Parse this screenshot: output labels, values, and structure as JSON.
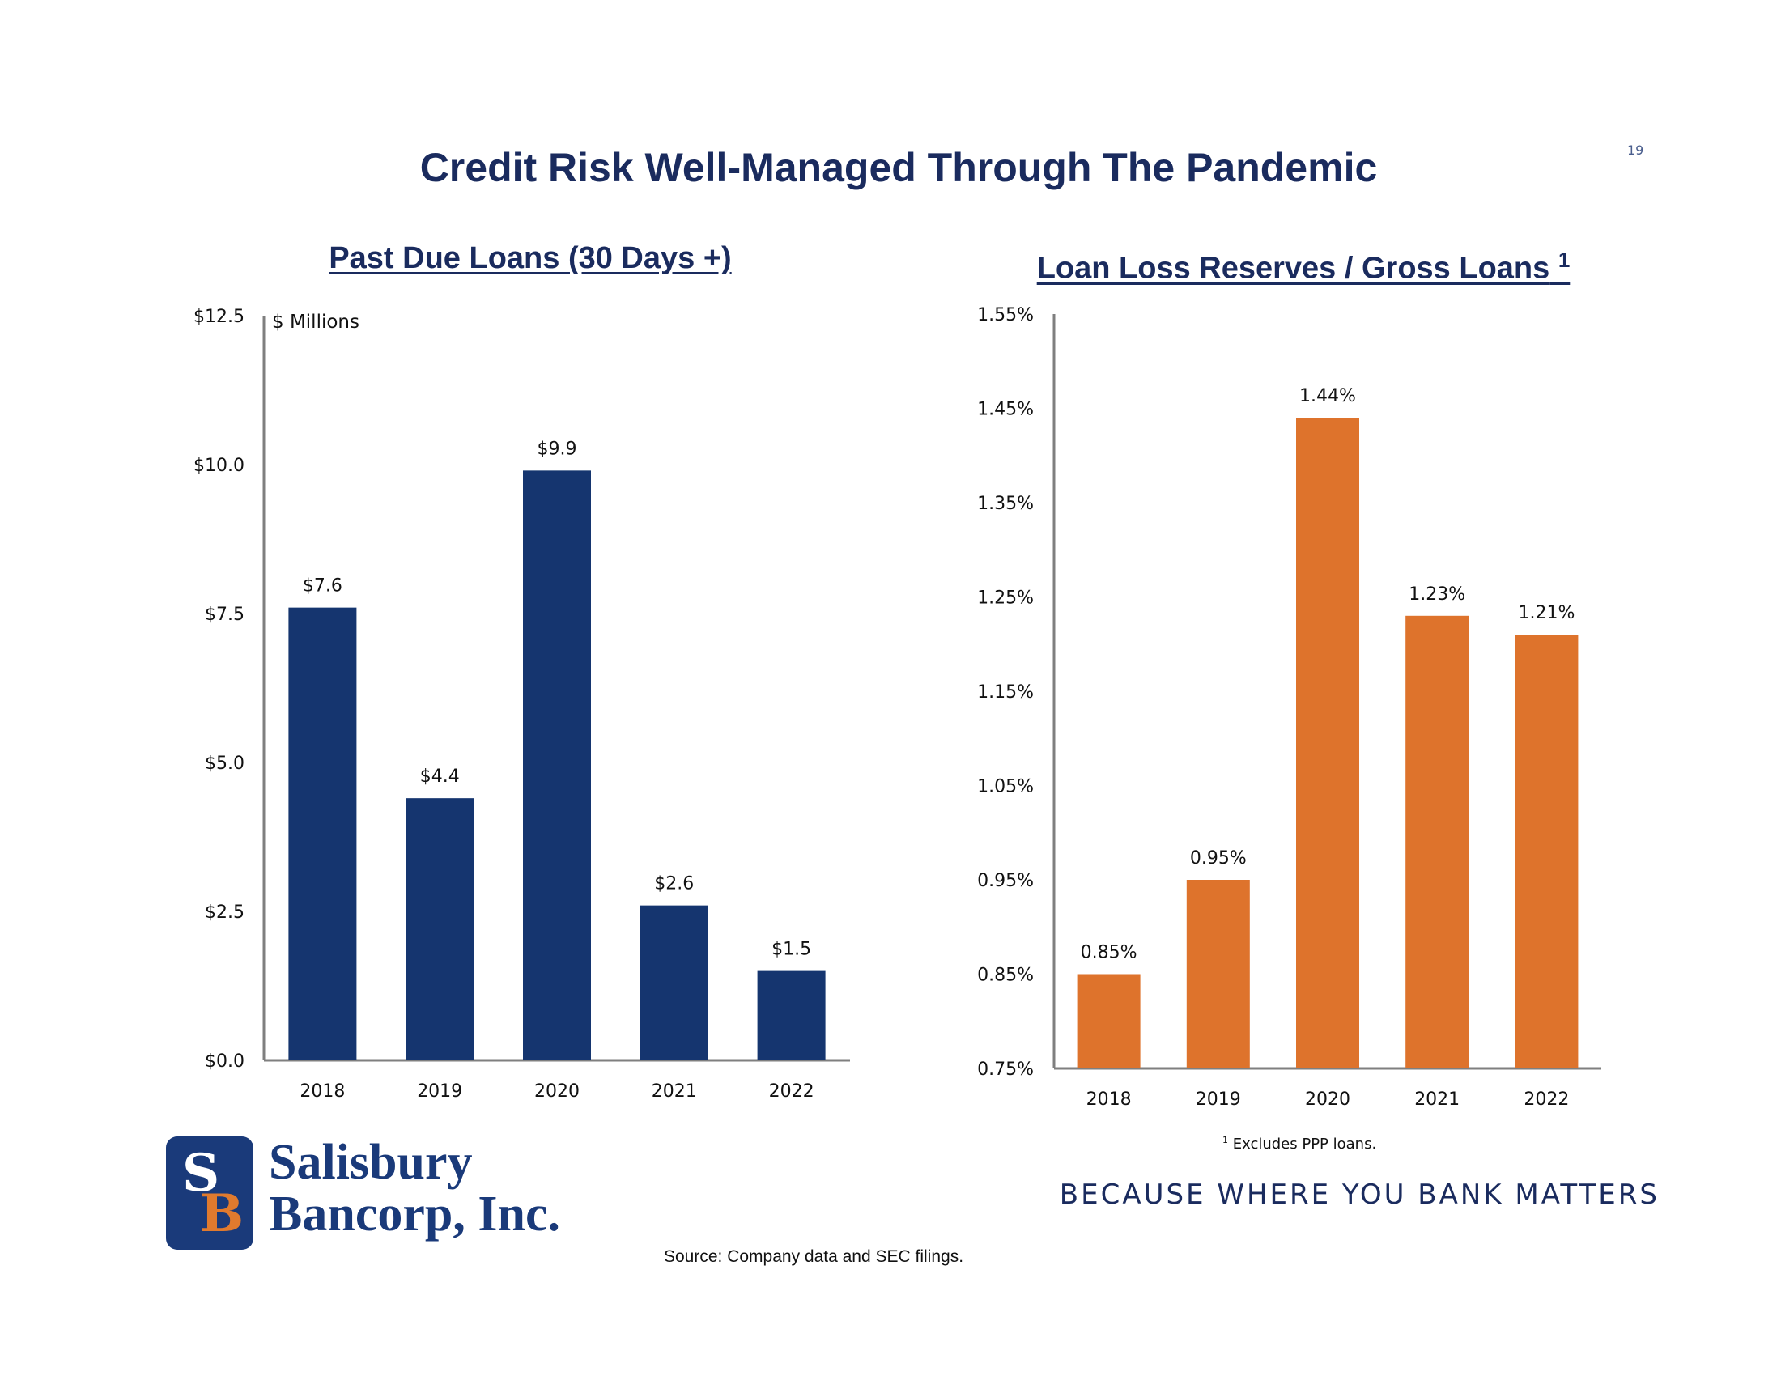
{
  "page": {
    "number": "19",
    "title": "Credit Risk Well-Managed Through The Pandemic",
    "footnote_marker": "1",
    "footnote_text": "Excludes PPP loans.",
    "tagline": "BECAUSE WHERE YOU BANK MATTERS",
    "source": "Source: Company data and SEC filings.",
    "logo": {
      "mark_s": "S",
      "mark_b": "B",
      "line1": "Salisbury",
      "line2": "Bancorp, Inc."
    }
  },
  "colors": {
    "navy": "#15356f",
    "orange": "#de732c",
    "title": "#1a2b5e",
    "axis": "#7f7f7f"
  },
  "chart_data": [
    {
      "type": "bar",
      "title": "Past Due Loans (30 Days +)",
      "unit_label": "$ Millions",
      "categories": [
        "2018",
        "2019",
        "2020",
        "2021",
        "2022"
      ],
      "values": [
        7.6,
        4.4,
        9.9,
        2.6,
        1.5
      ],
      "data_labels": [
        "$7.6",
        "$4.4",
        "$9.9",
        "$2.6",
        "$1.5"
      ],
      "ylim": [
        0,
        12.5
      ],
      "y_ticks": [
        0,
        2.5,
        5,
        7.5,
        10,
        12.5
      ],
      "y_tick_labels": [
        "$0.0",
        "$2.5",
        "$5.0",
        "$7.5",
        "$10.0",
        "$12.5"
      ],
      "xlabel": "",
      "ylabel": "",
      "grid": false
    },
    {
      "type": "bar",
      "title": "Loan Loss Reserves / Gross Loans",
      "title_superscript": "1",
      "categories": [
        "2018",
        "2019",
        "2020",
        "2021",
        "2022"
      ],
      "values": [
        0.85,
        0.95,
        1.44,
        1.23,
        1.21
      ],
      "data_labels": [
        "0.85%",
        "0.95%",
        "1.44%",
        "1.23%",
        "1.21%"
      ],
      "ylim": [
        0.75,
        1.55
      ],
      "y_ticks": [
        0.75,
        0.85,
        0.95,
        1.05,
        1.15,
        1.25,
        1.35,
        1.45,
        1.55
      ],
      "y_tick_labels": [
        "0.75%",
        "0.85%",
        "0.95%",
        "1.05%",
        "1.15%",
        "1.25%",
        "1.35%",
        "1.45%",
        "1.55%"
      ],
      "xlabel": "",
      "ylabel": "",
      "grid": false
    }
  ]
}
